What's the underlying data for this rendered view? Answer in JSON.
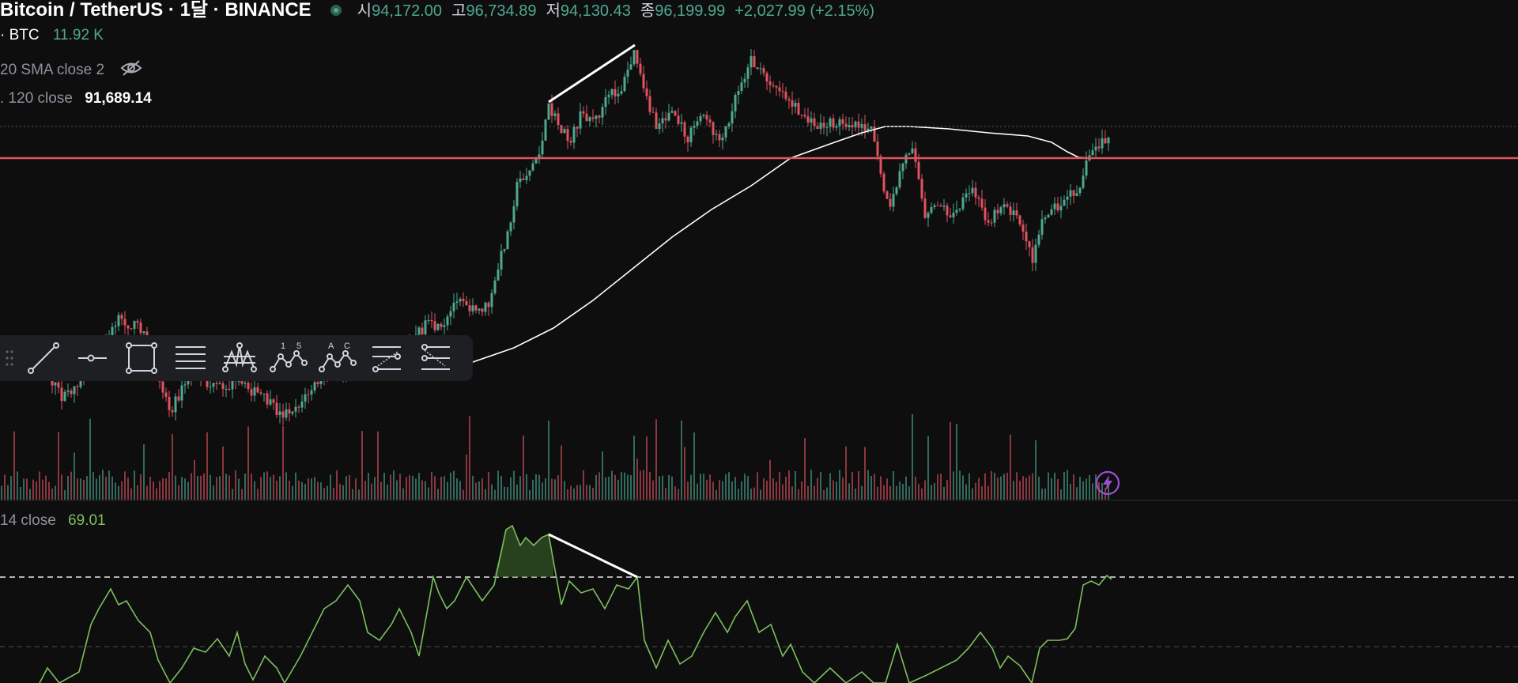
{
  "legend": {
    "pair": "Bitcoin / TetherUS · 1달 · BINANCE",
    "ohlc": [
      {
        "key": "시",
        "value": "94,172.00"
      },
      {
        "key": "고",
        "value": "96,734.89"
      },
      {
        "key": "저",
        "value": "94,130.43"
      },
      {
        "key": "종",
        "value": "96,199.99"
      }
    ],
    "change": "+2,027.99 (+2.15%)",
    "volume_label": "· BTC",
    "volume_value": "11.92 K",
    "sma_label": "20 SMA close 2",
    "ema_label": ". 120 close",
    "ema_value": "91,689.14",
    "rsi_label": "14 close",
    "rsi_value": "69.01"
  },
  "toolbar": {
    "tools": [
      "drag-handle-icon",
      "trend-line-icon",
      "horizontal-ray-icon",
      "rectangle-icon",
      "parallel-lines-icon",
      "pitchfork-icon",
      "elliott-wave-icon",
      "abc-pattern-icon",
      "fib-retracement-icon",
      "fib-extension-icon"
    ],
    "wave_labels": [
      "1",
      "5",
      "A",
      "C"
    ]
  },
  "colors": {
    "background": "#0e0e0f",
    "up": "#4fa88f",
    "down": "#e0535f",
    "support_line": "#e0535f",
    "ma_line": "#ffffff",
    "rsi_line": "#7cbf5e",
    "alert_icon": "#9c4fd6"
  },
  "chart_data": [
    {
      "type": "candlestick",
      "title": "Bitcoin / TetherUS · 1달 · BINANCE",
      "series": [
        {
          "name": "BTC/USDT",
          "style": "candles"
        },
        {
          "name": "120 close",
          "style": "line",
          "last_value": 91689.14
        },
        {
          "name": "Volume · BTC",
          "style": "bars",
          "last_value": "11.92 K"
        }
      ],
      "last_close": 96199.99,
      "horizontal_line": "red support line below current price",
      "annotations": [
        "white trend line connecting two swing highs (divergence)"
      ]
    },
    {
      "type": "line",
      "title": "14 close",
      "last_value": 69.01,
      "reference_lines": [
        70,
        50
      ],
      "annotations": [
        "white line connecting two RSI peaks (bearish divergence)"
      ]
    }
  ]
}
